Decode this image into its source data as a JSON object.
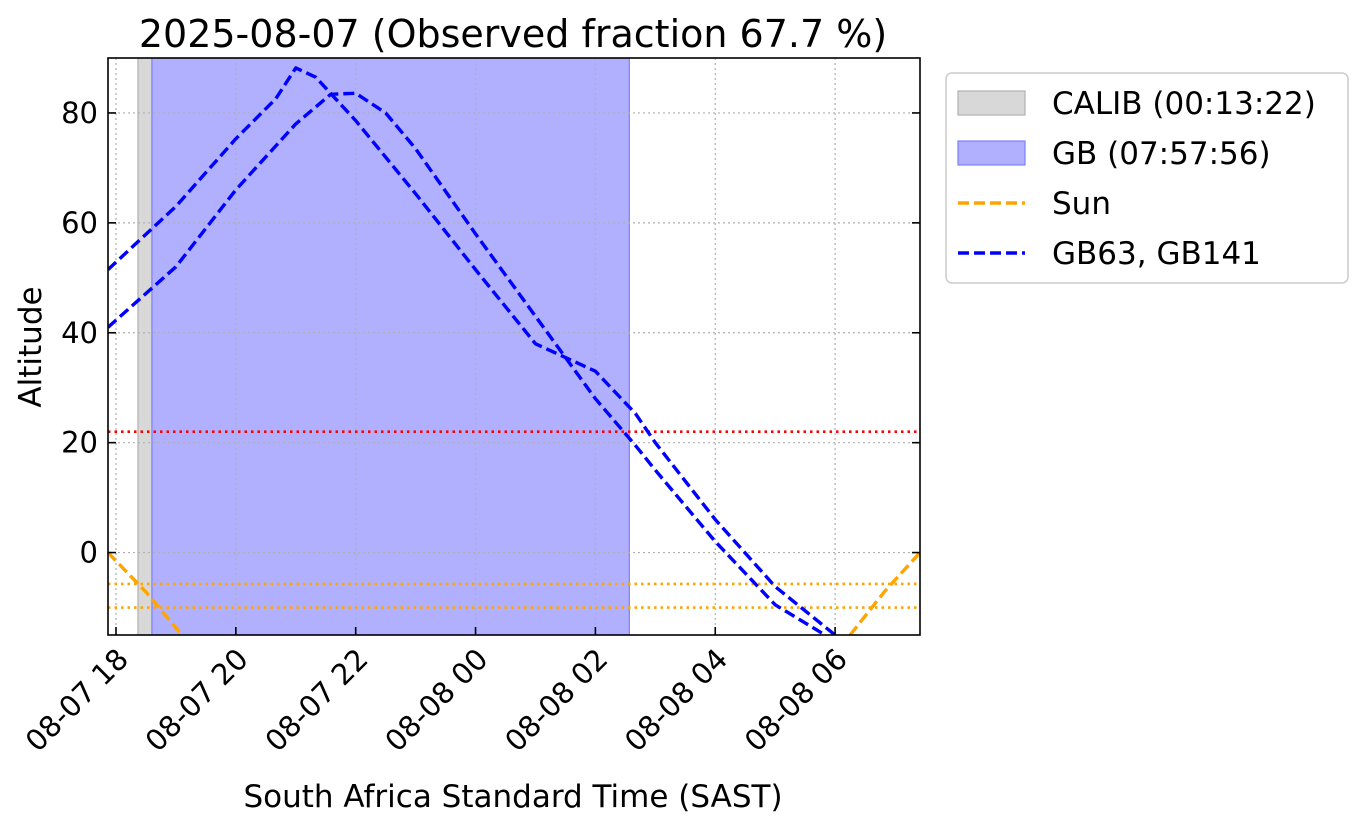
{
  "chart_data": {
    "type": "line",
    "title": "2025-08-07 (Observed fraction 67.7 %)",
    "xlabel": "South Africa Standard Time (SAST)",
    "ylabel": "Altitude",
    "xlim": [
      "2025-08-07 17:52",
      "2025-08-08 07:25"
    ],
    "ylim": [
      -15,
      90
    ],
    "grid": true,
    "legend_position": "outside-right",
    "x_ticks": [
      {
        "time": "2025-08-07 18:00",
        "label": "08-07 18"
      },
      {
        "time": "2025-08-07 20:00",
        "label": "08-07 20"
      },
      {
        "time": "2025-08-07 22:00",
        "label": "08-07 22"
      },
      {
        "time": "2025-08-08 00:00",
        "label": "08-08 00"
      },
      {
        "time": "2025-08-08 02:00",
        "label": "08-08 02"
      },
      {
        "time": "2025-08-08 04:00",
        "label": "08-08 04"
      },
      {
        "time": "2025-08-08 06:00",
        "label": "08-08 06"
      }
    ],
    "y_ticks": [
      0,
      20,
      40,
      60,
      80
    ],
    "spans": [
      {
        "name": "CALIB (00:13:22)",
        "start": "2025-08-07 18:22",
        "end": "2025-08-07 18:36",
        "color": "#d8d8d8",
        "edge": "#b0b0b0"
      },
      {
        "name": "GB (07:57:56)",
        "start": "2025-08-07 18:36",
        "end": "2025-08-08 02:34",
        "color": "#b0b0ff",
        "edge": "#7f7fff"
      }
    ],
    "hlines": [
      {
        "y": 22,
        "color": "#ff0000",
        "style": "dotted"
      },
      {
        "y": -5.7,
        "color": "#ffa500",
        "style": "dotted"
      },
      {
        "y": -10,
        "color": "#ffa500",
        "style": "dotted"
      }
    ],
    "series": [
      {
        "name": "Sun",
        "legend": "Sun",
        "color": "#ffa500",
        "style": "dashed",
        "segments": [
          [
            [
              "2025-08-07 17:52",
              0
            ],
            [
              "2025-08-07 18:30",
              -7.2
            ],
            [
              "2025-08-07 19:06",
              -15
            ]
          ],
          [
            [
              "2025-08-08 06:15",
              -15
            ],
            [
              "2025-08-08 06:50",
              -7
            ],
            [
              "2025-08-08 07:25",
              0
            ]
          ]
        ]
      },
      {
        "name": "GB63",
        "color": "#0000ff",
        "style": "dashed",
        "segments": [
          [
            [
              "2025-08-07 17:52",
              51.5
            ],
            [
              "2025-08-07 19:00",
              63
            ],
            [
              "2025-08-07 20:00",
              75.3
            ],
            [
              "2025-08-07 20:40",
              82.6
            ],
            [
              "2025-08-07 21:00",
              88.2
            ],
            [
              "2025-08-07 21:20",
              86.5
            ],
            [
              "2025-08-07 22:00",
              78.6
            ],
            [
              "2025-08-07 23:00",
              65.3
            ],
            [
              "2025-08-08 00:00",
              51.5
            ],
            [
              "2025-08-08 01:00",
              38
            ],
            [
              "2025-08-08 02:00",
              33
            ],
            [
              "2025-08-08 02:40",
              25.3
            ],
            [
              "2025-08-08 03:00",
              20
            ],
            [
              "2025-08-08 04:00",
              6
            ],
            [
              "2025-08-08 05:00",
              -6.2
            ],
            [
              "2025-08-08 06:00",
              -15
            ]
          ]
        ]
      },
      {
        "name": "GB141",
        "color": "#0000ff",
        "style": "dashed",
        "segments": [
          [
            [
              "2025-08-07 17:52",
              41
            ],
            [
              "2025-08-07 19:00",
              52
            ],
            [
              "2025-08-07 20:00",
              66
            ],
            [
              "2025-08-07 21:00",
              78
            ],
            [
              "2025-08-07 21:35",
              83.4
            ],
            [
              "2025-08-07 22:00",
              83.6
            ],
            [
              "2025-08-07 22:30",
              80
            ],
            [
              "2025-08-07 23:00",
              73.5
            ],
            [
              "2025-08-08 00:00",
              58
            ],
            [
              "2025-08-08 01:00",
              43
            ],
            [
              "2025-08-08 02:00",
              28
            ],
            [
              "2025-08-08 02:40",
              19.5
            ],
            [
              "2025-08-08 03:00",
              15
            ],
            [
              "2025-08-08 04:00",
              2
            ],
            [
              "2025-08-08 05:00",
              -9.5
            ],
            [
              "2025-08-08 05:50",
              -15
            ]
          ]
        ]
      }
    ],
    "legend": [
      {
        "label": "CALIB (00:13:22)",
        "kind": "patch",
        "color": "#d8d8d8",
        "edge": "#b0b0b0"
      },
      {
        "label": "GB (07:57:56)",
        "kind": "patch",
        "color": "#b0b0ff",
        "edge": "#7f7fff"
      },
      {
        "label": "Sun",
        "kind": "line",
        "color": "#ffa500"
      },
      {
        "label": "GB63, GB141",
        "kind": "line",
        "color": "#0000ff"
      }
    ]
  }
}
